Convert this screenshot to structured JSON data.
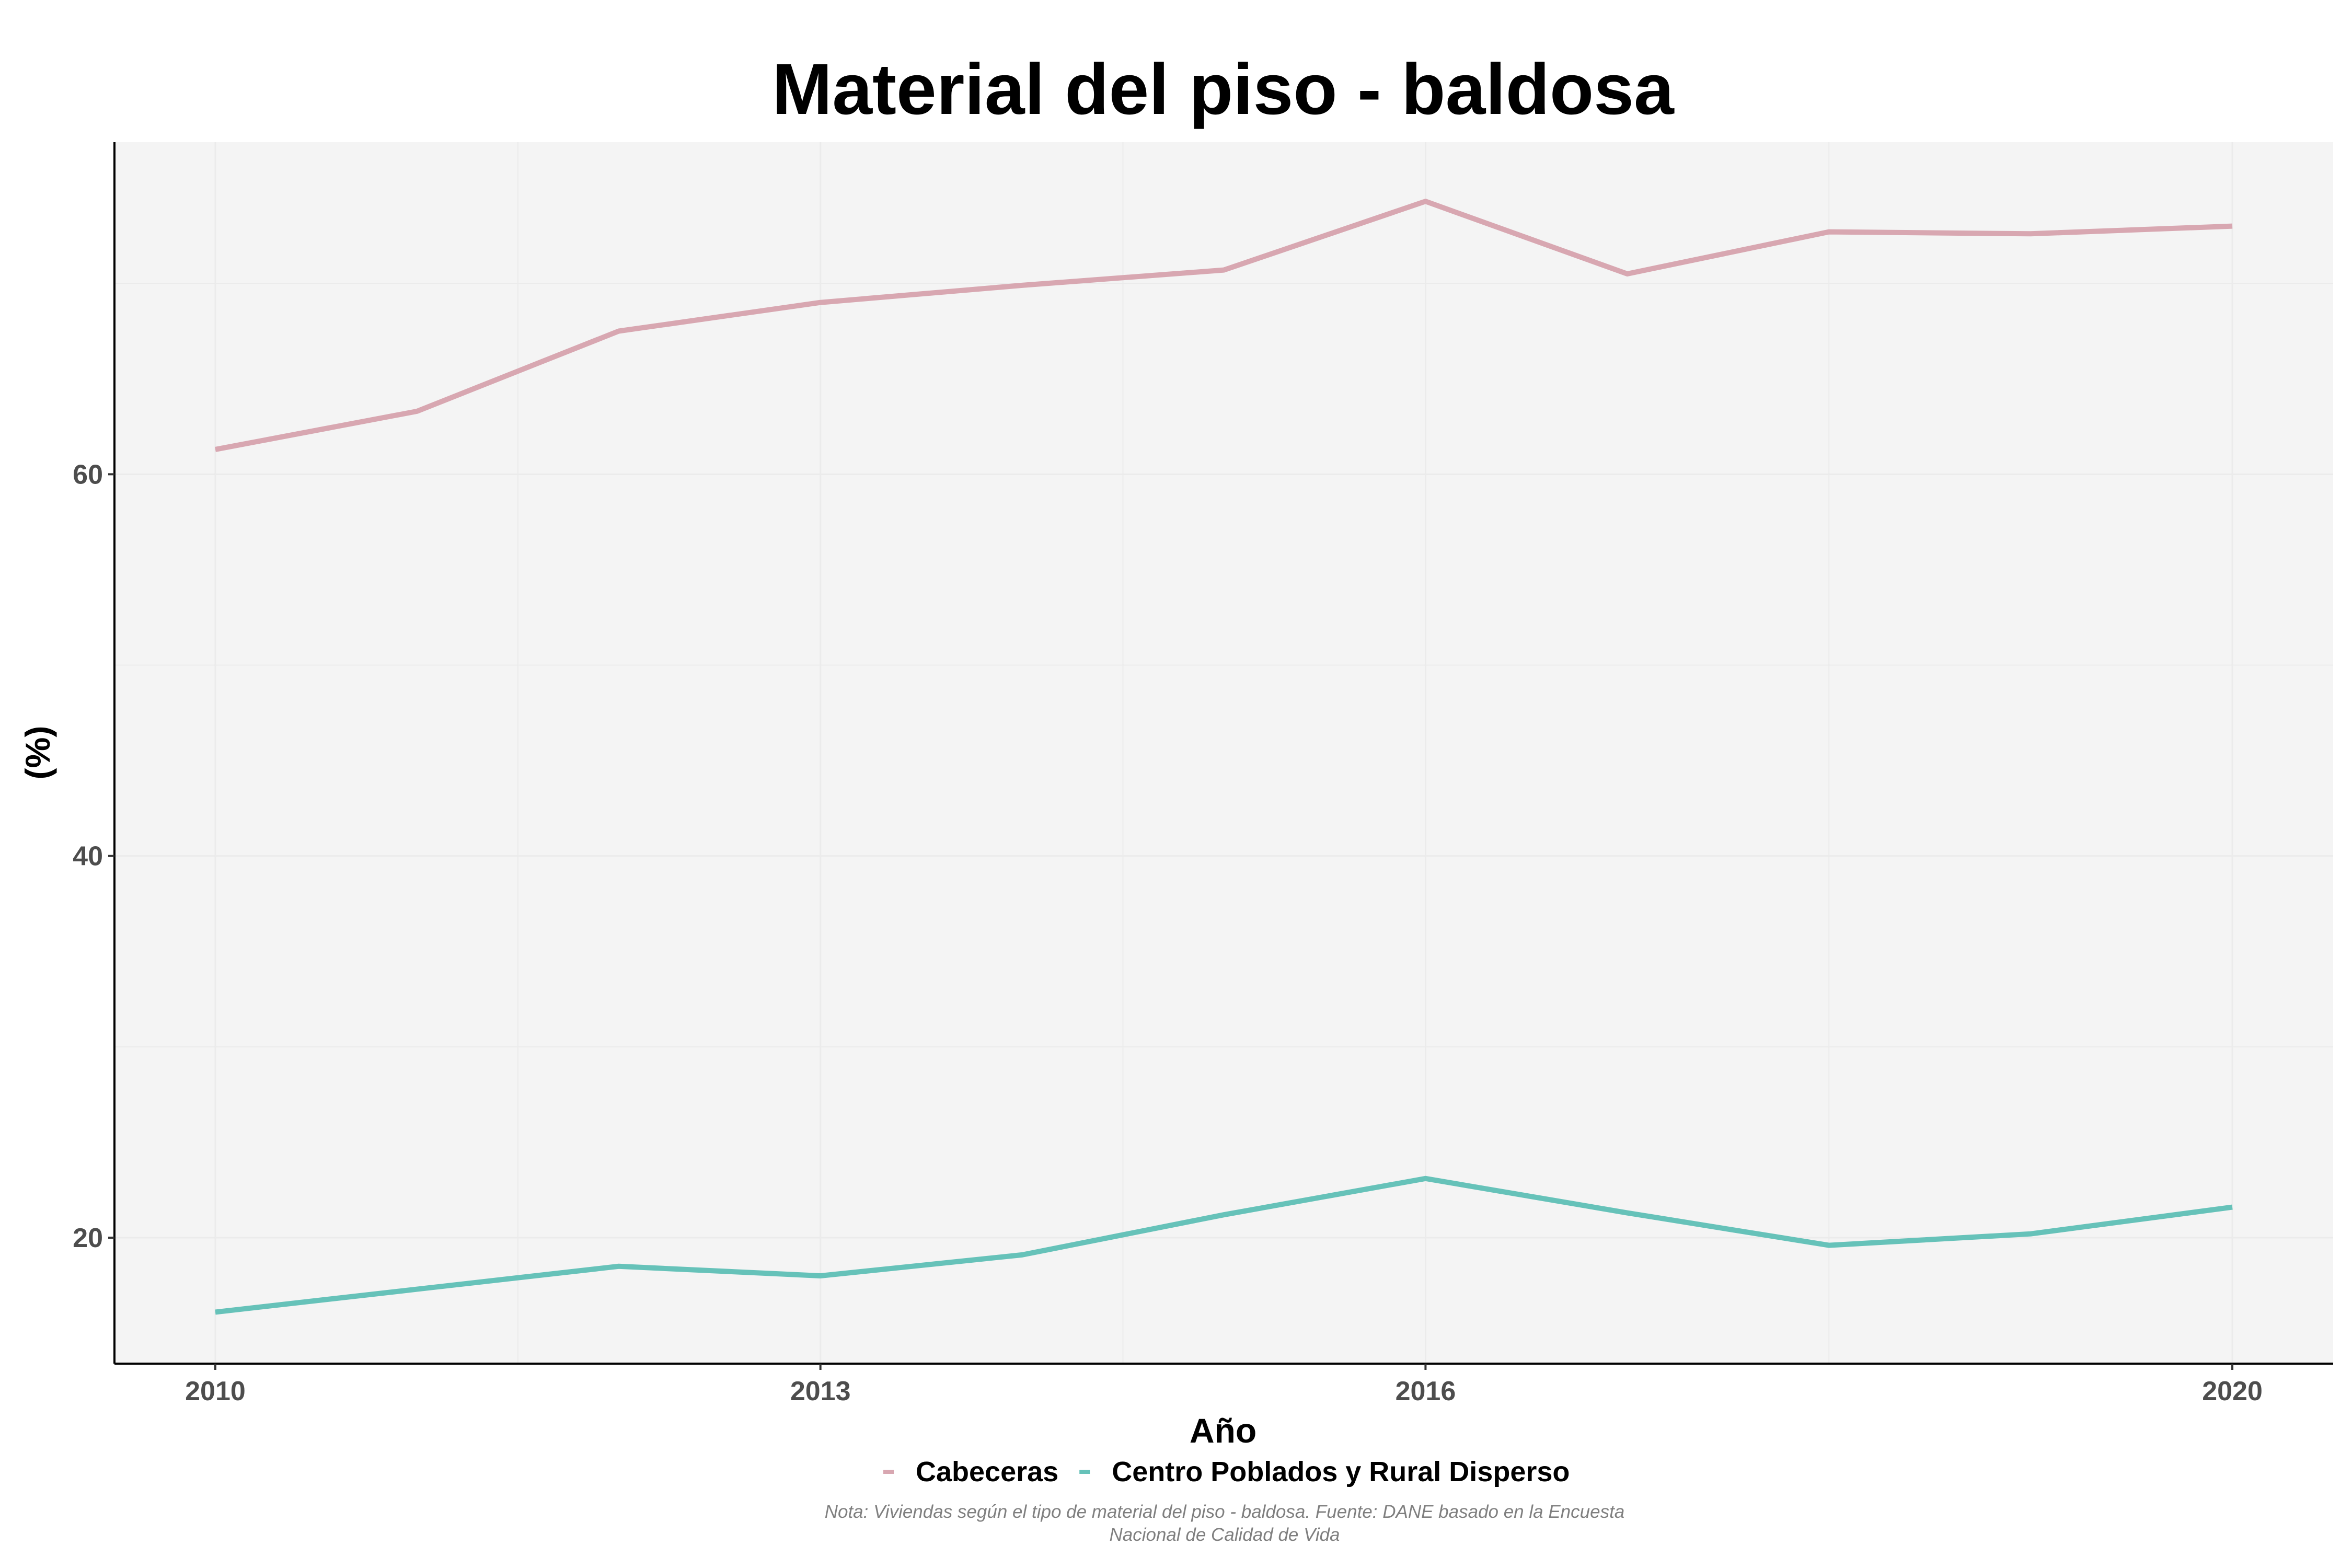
{
  "chart_data": {
    "type": "line",
    "title": "Material del piso - baldosa",
    "xlabel": "Año",
    "ylabel": "(%)",
    "x": [
      2010,
      2011,
      2012,
      2013,
      2014,
      2015,
      2016,
      2017,
      2018,
      2019,
      2020
    ],
    "series": [
      {
        "name": "Cabeceras",
        "color": "#d8a7b1",
        "values": [
          61.3,
          63.3,
          67.5,
          69.0,
          69.9,
          70.7,
          74.3,
          70.5,
          72.7,
          72.6,
          73.0
        ]
      },
      {
        "name": "Centro Poblados y Rural Disperso",
        "color": "#66c2b9",
        "values": [
          16.1,
          17.3,
          18.5,
          18.0,
          19.1,
          21.2,
          23.1,
          21.3,
          19.6,
          20.2,
          21.6
        ]
      }
    ],
    "xlim": [
      2009.5,
      2020.5
    ],
    "ylim": [
      13.4,
      77.4
    ],
    "xticks": [
      2010,
      2013,
      2016,
      2020
    ],
    "yticks": [
      20,
      40,
      60
    ],
    "ytick_labels": [
      "20",
      "40",
      "60"
    ],
    "grid": true,
    "legend_position": "bottom",
    "caption_lines": [
      "Nota: Viviendas según el tipo de material del piso - baldosa. Fuente: DANE basado en la Encuesta",
      "Nacional de Calidad de Vida"
    ],
    "panel_color": "#f4f4f4",
    "grid_color": "#ebebeb"
  }
}
